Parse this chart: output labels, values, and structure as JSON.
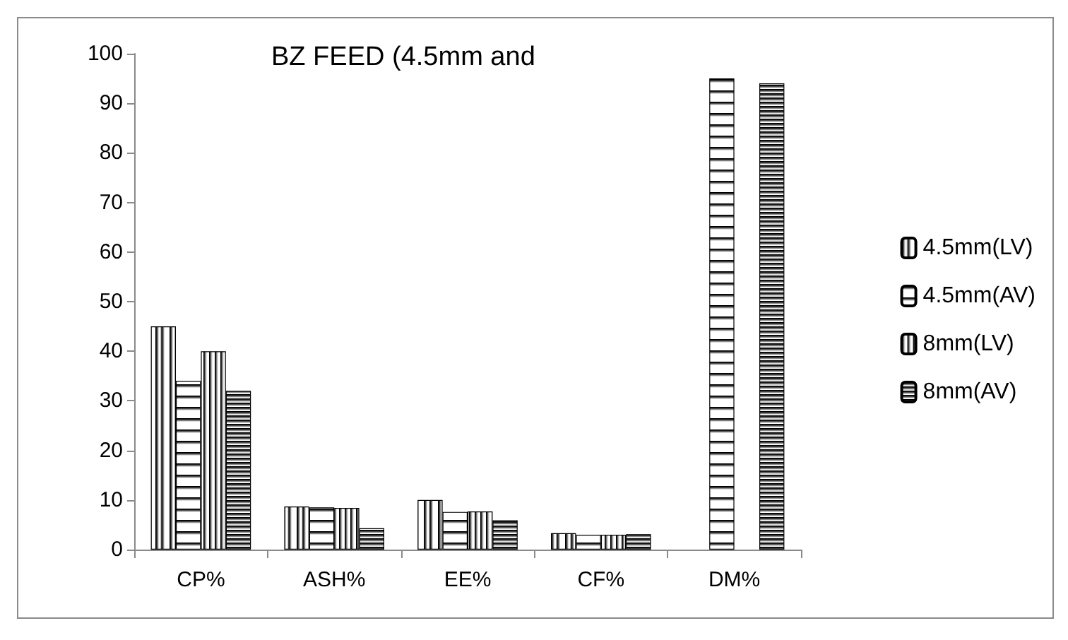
{
  "chart_data": {
    "type": "bar",
    "title": "BZ FEED (4.5mm and",
    "categories": [
      "CP%",
      "ASH%",
      "EE%",
      "CF%",
      "DM%"
    ],
    "series": [
      {
        "name": "4.5mm(LV)",
        "color": "#000000",
        "values": [
          45,
          8.7,
          10,
          3.3,
          null
        ]
      },
      {
        "name": "4.5mm(AV)",
        "color": "#000000",
        "values": [
          34,
          8.5,
          7.6,
          3,
          95
        ]
      },
      {
        "name": "8mm(LV)",
        "color": "#000000",
        "values": [
          40,
          8.4,
          7.7,
          3,
          null
        ]
      },
      {
        "name": "8mm(AV)",
        "color": "#000000",
        "values": [
          32,
          4.3,
          5.9,
          3.1,
          94
        ]
      }
    ],
    "ylim": [
      0,
      100
    ],
    "yticks": [
      0,
      10,
      20,
      30,
      40,
      50,
      60,
      70,
      80,
      90,
      100
    ],
    "grid": false,
    "legend": "right"
  }
}
